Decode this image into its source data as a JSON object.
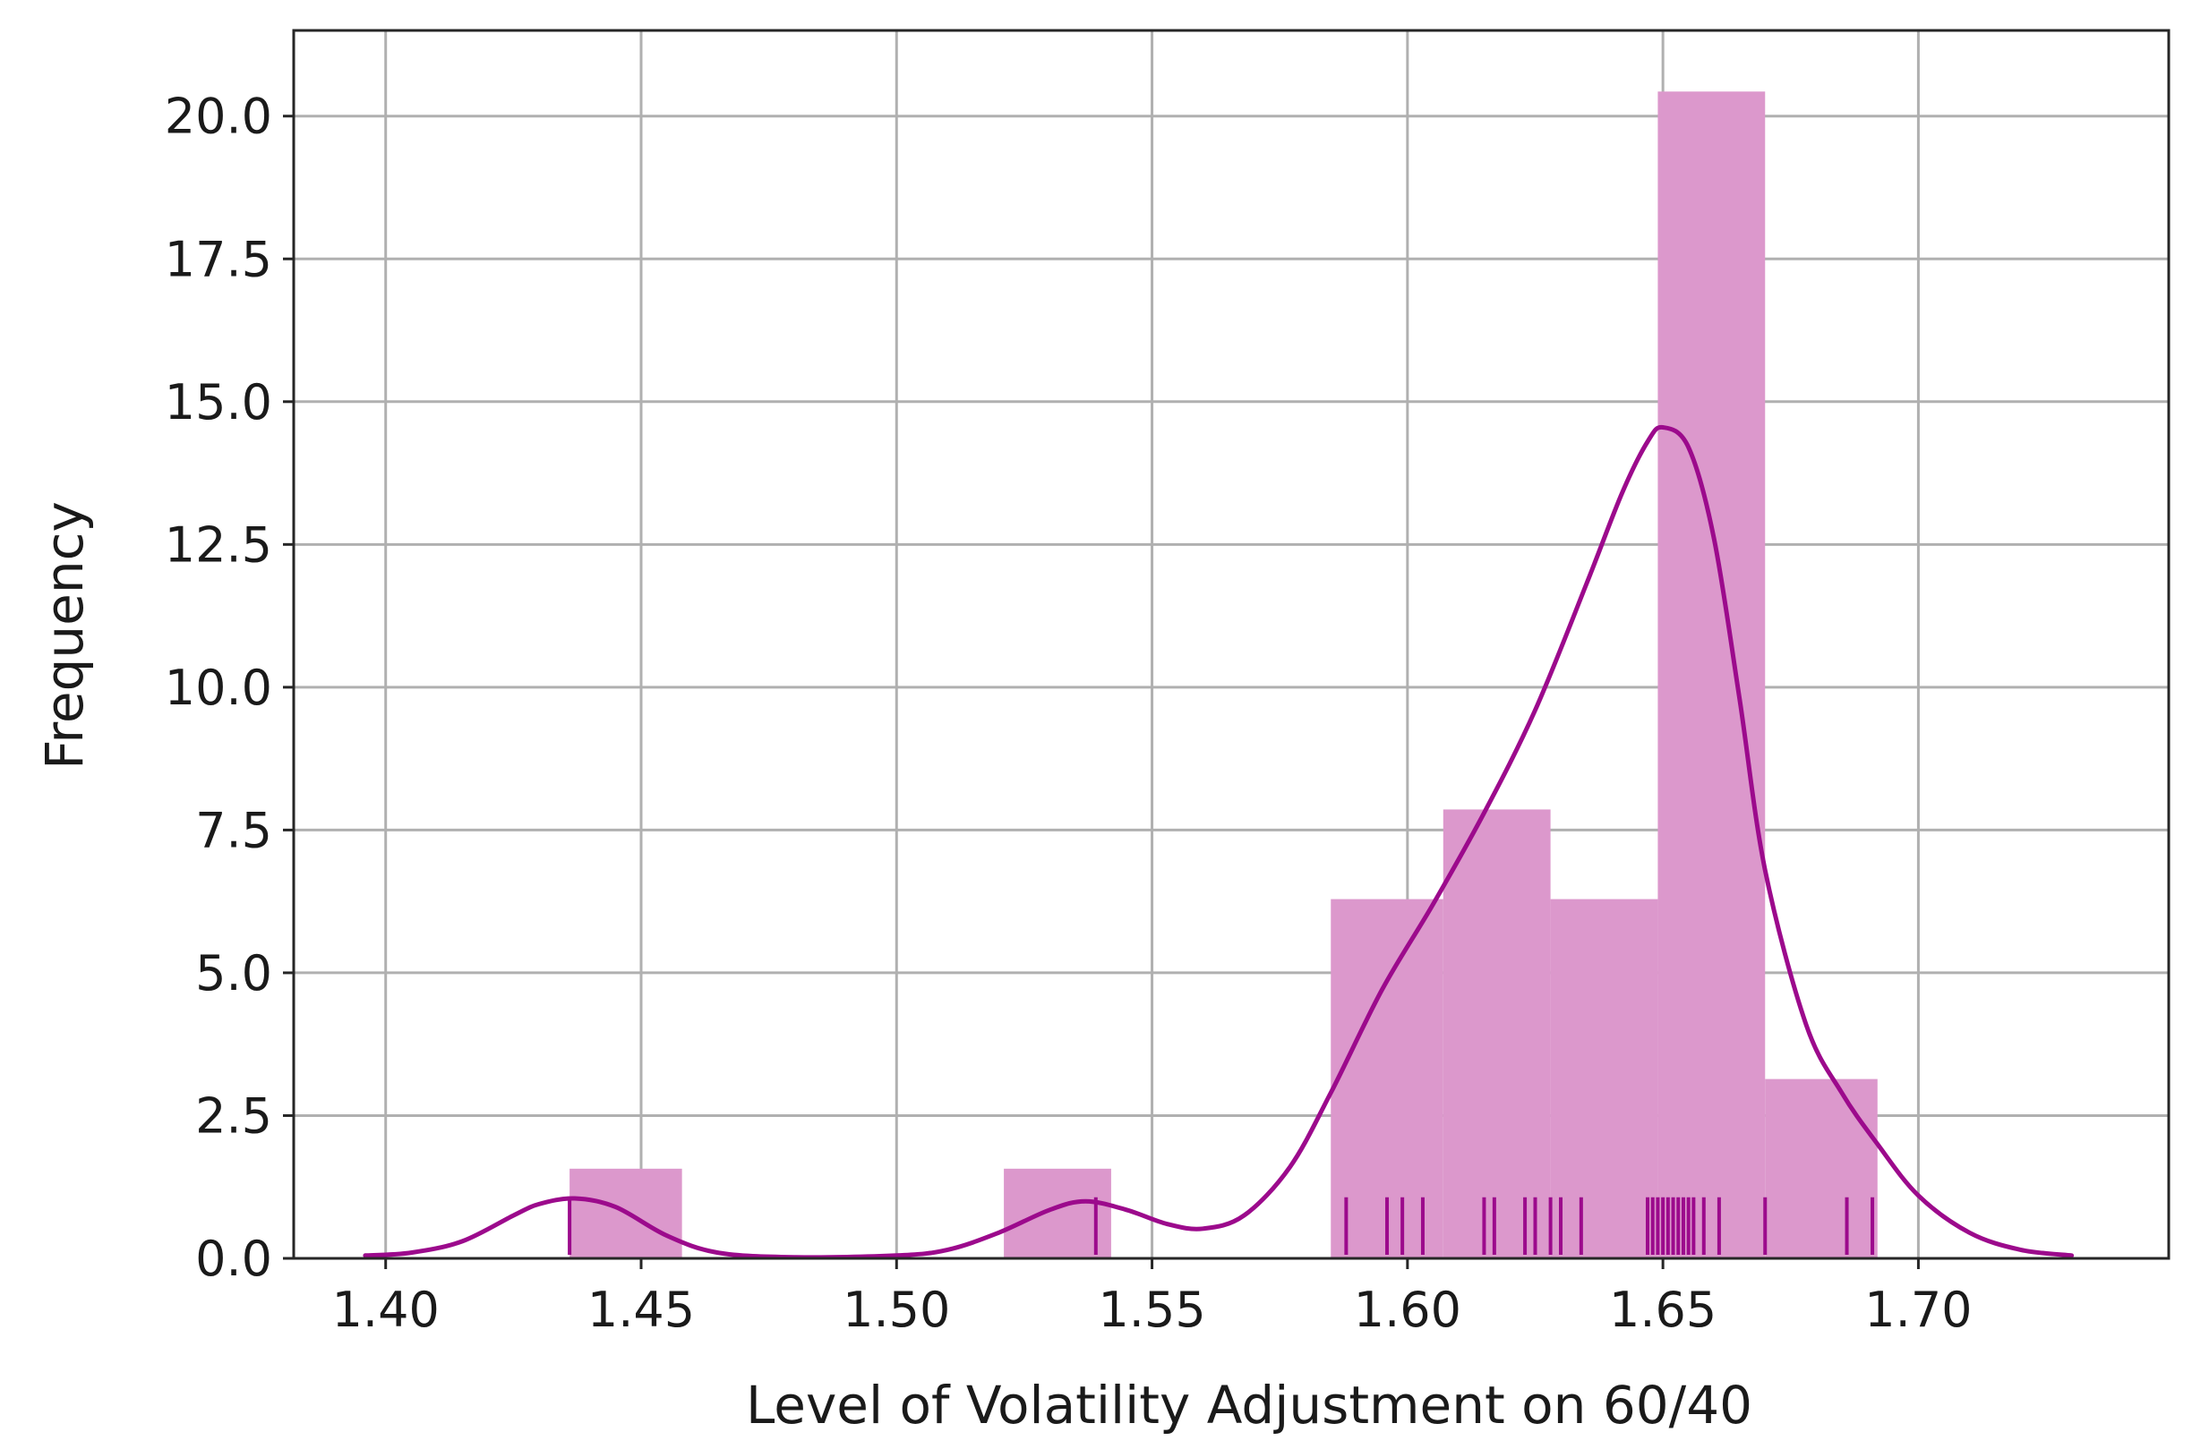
{
  "chart_data": {
    "type": "bar",
    "title": "",
    "xlabel": "Level of Volatility Adjustment on 60/40",
    "ylabel": "Frequency",
    "xlim": [
      1.382,
      1.749
    ],
    "ylim": [
      0,
      21.5
    ],
    "grid": true,
    "colors": {
      "bar": "#dc98cc",
      "line": "#9c0a8c",
      "rug": "#9c0a8c",
      "grid": "#b0b0b0",
      "frame": "#262626"
    },
    "x_ticks": [
      {
        "value": 1.4,
        "label": "1.40"
      },
      {
        "value": 1.45,
        "label": "1.45"
      },
      {
        "value": 1.5,
        "label": "1.50"
      },
      {
        "value": 1.55,
        "label": "1.55"
      },
      {
        "value": 1.6,
        "label": "1.60"
      },
      {
        "value": 1.65,
        "label": "1.65"
      },
      {
        "value": 1.7,
        "label": "1.70"
      }
    ],
    "y_ticks": [
      {
        "value": 0,
        "label": "0.0"
      },
      {
        "value": 2.5,
        "label": "2.5"
      },
      {
        "value": 5,
        "label": "5.0"
      },
      {
        "value": 7.5,
        "label": "7.5"
      },
      {
        "value": 10,
        "label": "10.0"
      },
      {
        "value": 12.5,
        "label": "12.5"
      },
      {
        "value": 15,
        "label": "15.0"
      },
      {
        "value": 17.5,
        "label": "17.5"
      },
      {
        "value": 20,
        "label": "20.0"
      }
    ],
    "histogram": [
      {
        "x0": 1.436,
        "x1": 1.458,
        "height": 1.57
      },
      {
        "x0": 1.458,
        "x1": 1.521,
        "height": 0
      },
      {
        "x0": 1.521,
        "x1": 1.542,
        "height": 1.57
      },
      {
        "x0": 1.542,
        "x1": 1.585,
        "height": 0
      },
      {
        "x0": 1.585,
        "x1": 1.607,
        "height": 6.29
      },
      {
        "x0": 1.607,
        "x1": 1.628,
        "height": 7.86
      },
      {
        "x0": 1.628,
        "x1": 1.649,
        "height": 6.29
      },
      {
        "x0": 1.649,
        "x1": 1.67,
        "height": 20.43
      },
      {
        "x0": 1.67,
        "x1": 1.692,
        "height": 3.14
      }
    ],
    "kde": {
      "x": [
        1.396,
        1.405,
        1.415,
        1.425,
        1.43,
        1.437,
        1.445,
        1.455,
        1.465,
        1.48,
        1.5,
        1.51,
        1.52,
        1.53,
        1.537,
        1.545,
        1.553,
        1.56,
        1.568,
        1.577,
        1.585,
        1.595,
        1.605,
        1.615,
        1.625,
        1.635,
        1.642,
        1.647,
        1.65,
        1.655,
        1.66,
        1.665,
        1.67,
        1.678,
        1.685,
        1.692,
        1.7,
        1.71,
        1.72,
        1.73
      ],
      "y": [
        0.05,
        0.1,
        0.3,
        0.75,
        0.95,
        1.05,
        0.9,
        0.4,
        0.1,
        0.02,
        0.05,
        0.15,
        0.45,
        0.85,
        1.0,
        0.85,
        0.6,
        0.52,
        0.75,
        1.6,
        2.9,
        4.7,
        6.2,
        7.8,
        9.6,
        11.8,
        13.4,
        14.3,
        14.55,
        14.2,
        12.6,
        9.8,
        6.8,
        4.1,
        2.9,
        2.0,
        1.1,
        0.45,
        0.15,
        0.05
      ]
    },
    "rug": [
      1.436,
      1.539,
      1.588,
      1.596,
      1.599,
      1.603,
      1.615,
      1.617,
      1.623,
      1.625,
      1.628,
      1.63,
      1.634,
      1.647,
      1.648,
      1.649,
      1.65,
      1.651,
      1.652,
      1.653,
      1.654,
      1.655,
      1.656,
      1.658,
      1.661,
      1.67,
      1.686,
      1.691
    ]
  }
}
